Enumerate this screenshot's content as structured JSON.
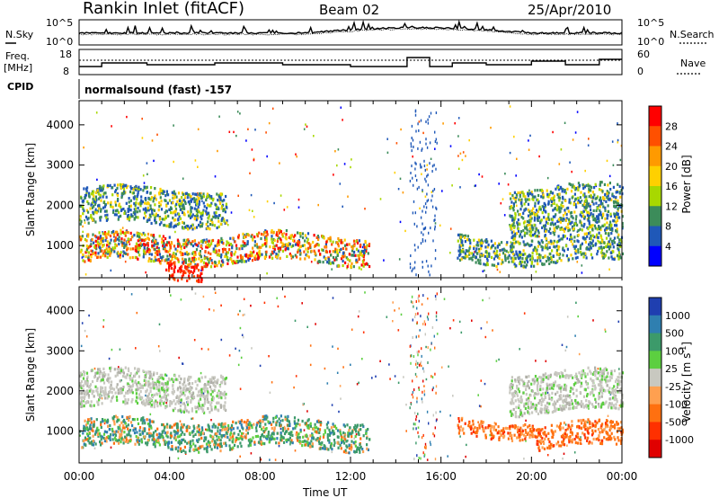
{
  "header": {
    "title": "Rankin Inlet (fitACF)",
    "beam": "Beam 02",
    "date": "25/Apr/2010"
  },
  "top_panel": {
    "left_label": "N.Sky",
    "right_label": "N.Search",
    "left_ticks": [
      "10^5",
      "10^0"
    ],
    "right_ticks": [
      "10^5",
      "10^0"
    ]
  },
  "freq_panel": {
    "left_label_line1": "Freq.",
    "left_label_line2": "[MHz]",
    "left_ticks": [
      "18",
      "8"
    ],
    "right_ticks": [
      "60",
      "0"
    ],
    "right_label": "Nave",
    "cpid_label": "CPID",
    "cpid_text": "normalsound (fast) -157"
  },
  "chart_data": [
    {
      "type": "heatmap",
      "name": "power",
      "ylabel": "Slant Range [km]",
      "xlabel": "",
      "yticks": [
        1000,
        2000,
        3000,
        4000
      ],
      "ylim": [
        200,
        4600
      ],
      "colorbar": {
        "label": "Power [dB]",
        "ticks": [
          "28",
          "24",
          "20",
          "16",
          "12",
          "8",
          "4"
        ],
        "colors": [
          "#ff0000",
          "#ff5000",
          "#ff9a00",
          "#ffd000",
          "#a8d800",
          "#3c8c5a",
          "#1f58b8",
          "#0000ff"
        ]
      },
      "bands": [
        {
          "x0": 0,
          "x1": 6.5,
          "y0": 1550,
          "y1": 2450,
          "class": "mid"
        },
        {
          "x0": 19.0,
          "x1": 24,
          "y0": 1300,
          "y1": 2500,
          "class": "mid"
        },
        {
          "x0": 0,
          "x1": 12.8,
          "y0": 600,
          "y1": 1300,
          "class": "high"
        },
        {
          "x0": 16.7,
          "x1": 24,
          "y0": 600,
          "y1": 1250,
          "class": "mid"
        },
        {
          "x0": 3.8,
          "x1": 5.5,
          "y0": 250,
          "y1": 700,
          "class": "peak"
        }
      ]
    },
    {
      "type": "heatmap",
      "name": "velocity",
      "ylabel": "Slant Range [km]",
      "xlabel": "Time UT",
      "yticks": [
        1000,
        2000,
        3000,
        4000
      ],
      "ylim": [
        200,
        4600
      ],
      "xticks": [
        "00:00",
        "04:00",
        "08:00",
        "12:00",
        "16:00",
        "20:00",
        "00:00"
      ],
      "xrange_hours": [
        0,
        24
      ],
      "colorbar": {
        "label": "Velocity [m s",
        "label_sup": "-1",
        "label_end": "]",
        "ticks": [
          "1000",
          "500",
          "100",
          "25",
          "-25",
          "-100",
          "-500",
          "-1000"
        ],
        "colors": [
          "#1f3fb0",
          "#2f7fb0",
          "#3c9a6a",
          "#5ccf40",
          "#c8c8c0",
          "#ffa050",
          "#ff7010",
          "#ff3000",
          "#e00000"
        ]
      },
      "bands": [
        {
          "x0": 0,
          "x1": 6.5,
          "y0": 1600,
          "y1": 2500,
          "class": "gray"
        },
        {
          "x0": 19.0,
          "x1": 24,
          "y0": 1500,
          "y1": 2500,
          "class": "gray"
        },
        {
          "x0": 0,
          "x1": 12.8,
          "y0": 600,
          "y1": 1300,
          "class": "green"
        },
        {
          "x0": 16.7,
          "x1": 20.2,
          "y0": 900,
          "y1": 1300,
          "class": "orange"
        },
        {
          "x0": 20.2,
          "x1": 24,
          "y0": 600,
          "y1": 1200,
          "class": "orange"
        }
      ]
    }
  ]
}
